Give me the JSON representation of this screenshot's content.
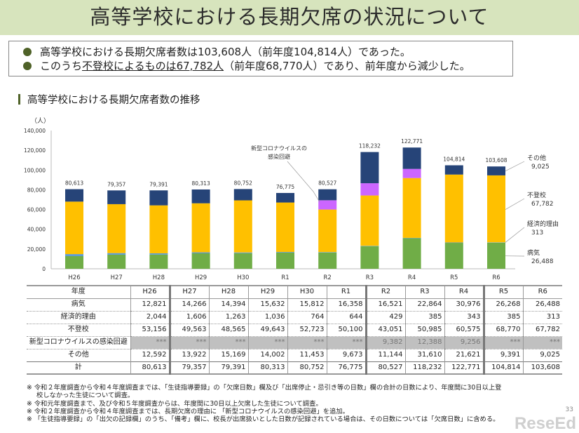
{
  "title": "高等学校における長期欠席の状況について",
  "summary": [
    {
      "pre": "高等学校における長期欠席者数は103,608人（前年度104,814人）であった。",
      "u": "",
      "post": ""
    },
    {
      "pre": "このうち",
      "u": "不登校によるものは67,782人",
      "post": "（前年度68,770人）であり、前年度から減少した。"
    }
  ],
  "subheading": "高等学校における長期欠席者数の推移",
  "chart_data": {
    "type": "bar",
    "stacked": true,
    "ylabel": "（人）",
    "ylim": [
      0,
      140000
    ],
    "yticks": [
      "0",
      "20,000",
      "40,000",
      "60,000",
      "80,000",
      "100,000",
      "120,000",
      "140,000"
    ],
    "categories": [
      "H26",
      "H27",
      "H28",
      "H29",
      "H30",
      "R1",
      "R2",
      "R3",
      "R4",
      "R5",
      "R6"
    ],
    "series": [
      {
        "name": "病気",
        "color": "#70ad47",
        "values": [
          12821,
          14266,
          14394,
          15632,
          15812,
          16358,
          16521,
          22864,
          30976,
          26268,
          26488
        ]
      },
      {
        "name": "経済的理由",
        "color": "#5b9bd5",
        "values": [
          2044,
          1606,
          1263,
          1036,
          764,
          644,
          429,
          385,
          343,
          385,
          313
        ]
      },
      {
        "name": "不登校",
        "color": "#ffc000",
        "values": [
          53156,
          49563,
          48565,
          49643,
          52723,
          50100,
          43051,
          50985,
          60575,
          68770,
          67782
        ]
      },
      {
        "name": "新型コロナウイルスの感染回避",
        "color": "#cc66ff",
        "values": [
          0,
          0,
          0,
          0,
          0,
          0,
          9382,
          12388,
          9256,
          0,
          0
        ]
      },
      {
        "name": "その他",
        "color": "#264478",
        "values": [
          12592,
          13922,
          15169,
          14002,
          11453,
          9673,
          11144,
          31610,
          21621,
          9391,
          9025
        ]
      }
    ],
    "totals": [
      "80,613",
      "79,357",
      "79,391",
      "80,313",
      "80,752",
      "76,775",
      "80,527",
      "118,232",
      "122,771",
      "104,814",
      "103,608"
    ],
    "annotation": [
      "新型コロナウイルスの",
      "感染回避"
    ],
    "labels": [
      {
        "name": "その他",
        "value": "9,025"
      },
      {
        "name": "不登校",
        "value": "67,782"
      },
      {
        "name": "経済的理由",
        "value": "313"
      },
      {
        "name": "病気",
        "value": "26,488"
      }
    ]
  },
  "table": {
    "header": [
      "年度",
      "H26",
      "H27",
      "H28",
      "H29",
      "H30",
      "R1",
      "R2",
      "R3",
      "R4",
      "R5",
      "R6"
    ],
    "rows": [
      [
        "病気",
        "12,821",
        "14,266",
        "14,394",
        "15,632",
        "15,812",
        "16,358",
        "16,521",
        "22,864",
        "30,976",
        "26,268",
        "26,488"
      ],
      [
        "経済的理由",
        "2,044",
        "1,606",
        "1,263",
        "1,036",
        "764",
        "644",
        "429",
        "385",
        "343",
        "385",
        "313"
      ],
      [
        "不登校",
        "53,156",
        "49,563",
        "48,565",
        "49,643",
        "52,723",
        "50,100",
        "43,051",
        "50,985",
        "60,575",
        "68,770",
        "67,782"
      ],
      [
        "新型コロナウイルスの感染回避",
        "***",
        "***",
        "***",
        "***",
        "***",
        "***",
        "9,382",
        "12,388",
        "9,256",
        "***",
        "***"
      ],
      [
        "その他",
        "12,592",
        "13,922",
        "15,169",
        "14,002",
        "11,453",
        "9,673",
        "11,144",
        "31,610",
        "21,621",
        "9,391",
        "9,025"
      ],
      [
        "計",
        "80,613",
        "79,357",
        "79,391",
        "80,313",
        "80,752",
        "76,775",
        "80,527",
        "118,232",
        "122,771",
        "104,814",
        "103,608"
      ]
    ]
  },
  "notes": [
    "※ 令和２年度調査から令和４年度調査までは、「生徒指導要録」の「欠席日数」欄及び「出席停止・忌引き等の日数」欄の合計の日数により、年度間に30日以上登校しなかった生徒について調査。",
    "※ 令和元年度調査まで、及び令和５年度調査からは、年度間に30日以上欠席した生徒について調査。",
    "※ 令和２年度調査から令和４年度調査までは、長期欠席の理由に 「新型コロナウイルスの感染回避」を追加。",
    "※ 「生徒指導要録」の「出欠の記録欄」のうち、「備考」欄に、校長が出席扱いとした日数が記録されている場合は、その日数については「欠席日数」に含める。"
  ],
  "logo": "ReseEd",
  "page_number": "33"
}
